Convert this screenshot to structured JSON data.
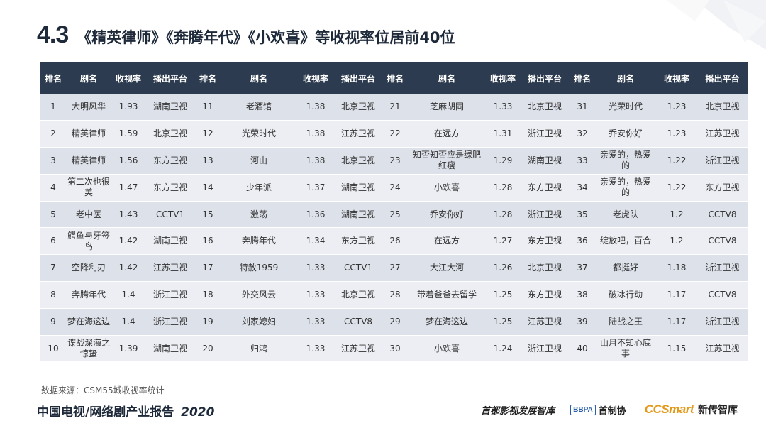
{
  "title": {
    "number": "4.3",
    "text": "《精英律师》《奔腾年代》《小欢喜》等收视率位居前40位"
  },
  "table": {
    "headers": [
      "排名",
      "剧名",
      "收视率",
      "播出平台",
      "排名",
      "剧名",
      "收视率",
      "播出平台",
      "排名",
      "剧名",
      "收视率",
      "播出平台",
      "排名",
      "剧名",
      "收视率",
      "播出平台"
    ],
    "rows": [
      [
        "1",
        "大明风华",
        "1.93",
        "湖南卫视",
        "11",
        "老酒馆",
        "1.38",
        "北京卫视",
        "21",
        "芝麻胡同",
        "1.33",
        "北京卫视",
        "31",
        "光荣时代",
        "1.23",
        "北京卫视"
      ],
      [
        "2",
        "精英律师",
        "1.59",
        "北京卫视",
        "12",
        "光荣时代",
        "1.38",
        "江苏卫视",
        "22",
        "在远方",
        "1.31",
        "浙江卫视",
        "32",
        "乔安你好",
        "1.23",
        "江苏卫视"
      ],
      [
        "3",
        "精英律师",
        "1.56",
        "东方卫视",
        "13",
        "河山",
        "1.38",
        "北京卫视",
        "23",
        "知否知否应是绿肥红瘦",
        "1.29",
        "湖南卫视",
        "33",
        "亲爱的，热爱的",
        "1.22",
        "浙江卫视"
      ],
      [
        "4",
        "第二次也很美",
        "1.47",
        "东方卫视",
        "14",
        "少年派",
        "1.37",
        "湖南卫视",
        "24",
        "小欢喜",
        "1.28",
        "东方卫视",
        "34",
        "亲爱的，热爱的",
        "1.22",
        "东方卫视"
      ],
      [
        "5",
        "老中医",
        "1.43",
        "CCTV1",
        "15",
        "激荡",
        "1.36",
        "湖南卫视",
        "25",
        "乔安你好",
        "1.28",
        "浙江卫视",
        "35",
        "老虎队",
        "1.2",
        "CCTV8"
      ],
      [
        "6",
        "鳄鱼与牙签鸟",
        "1.42",
        "湖南卫视",
        "16",
        "奔腾年代",
        "1.34",
        "东方卫视",
        "26",
        "在远方",
        "1.27",
        "东方卫视",
        "36",
        "绽放吧，百合",
        "1.2",
        "CCTV8"
      ],
      [
        "7",
        "空降利刃",
        "1.42",
        "江苏卫视",
        "17",
        "特赦1959",
        "1.33",
        "CCTV1",
        "27",
        "大江大河",
        "1.26",
        "北京卫视",
        "37",
        "都挺好",
        "1.18",
        "浙江卫视"
      ],
      [
        "8",
        "奔腾年代",
        "1.4",
        "浙江卫视",
        "18",
        "外交风云",
        "1.33",
        "北京卫视",
        "28",
        "带着爸爸去留学",
        "1.25",
        "东方卫视",
        "38",
        "破冰行动",
        "1.17",
        "CCTV8"
      ],
      [
        "9",
        "梦在海这边",
        "1.4",
        "浙江卫视",
        "19",
        "刘家媳妇",
        "1.33",
        "CCTV8",
        "29",
        "梦在海这边",
        "1.25",
        "江苏卫视",
        "39",
        "陆战之王",
        "1.17",
        "浙江卫视"
      ],
      [
        "10",
        "谍战深海之惊蛰",
        "1.39",
        "湖南卫视",
        "20",
        "归鸿",
        "1.33",
        "江苏卫视",
        "30",
        "小欢喜",
        "1.24",
        "浙江卫视",
        "40",
        "山月不知心底事",
        "1.15",
        "江苏卫视"
      ]
    ]
  },
  "source": "数据来源：CSM55城收视率统计",
  "footer": {
    "report_title": "中国电视/网络剧产业报告",
    "report_year": "2020",
    "logo_think_tank": "首都影视发展智库",
    "logo_bbpa": "BBPA",
    "logo_bbpa_cn": "首制协",
    "logo_ccsmart": "CCSmart",
    "logo_ccsmart_cn": "新传智库"
  },
  "colors": {
    "header_bg": "#2c3b4f",
    "row_odd": "#dde1ea",
    "row_even": "#eceef3",
    "ccsmart_orange": "#e39a1b"
  }
}
